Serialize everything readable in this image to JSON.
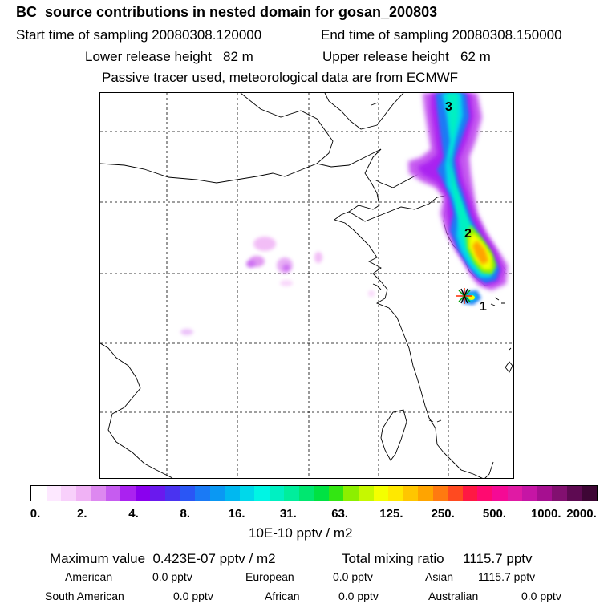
{
  "header": {
    "title": "BC  source contributions in nested domain for gosan_200803",
    "start_label": "Start time of sampling 20080308.120000",
    "end_label": "End time of sampling 20080308.150000",
    "lower_label": "Lower release height   82 m",
    "upper_label": "Upper release height   62 m",
    "tracer_note": "Passive tracer used, meteorological data are from ECMWF"
  },
  "map": {
    "markers": [
      {
        "label": "3"
      },
      {
        "label": "2"
      },
      {
        "label": "1"
      }
    ]
  },
  "colorbar": {
    "colors": [
      "#ffffff",
      "#fde8ff",
      "#f8d0fb",
      "#f0b2f5",
      "#dd88f0",
      "#c65cf0",
      "#aa22f0",
      "#8a00ee",
      "#6a19ee",
      "#4a33f0",
      "#2a56f5",
      "#1a7af5",
      "#0a98f3",
      "#00b8f0",
      "#00d8ea",
      "#00f5e4",
      "#00f0c2",
      "#00ee9c",
      "#00e770",
      "#00e243",
      "#33e612",
      "#8cef00",
      "#c6f800",
      "#f4ff00",
      "#ffe800",
      "#ffc600",
      "#ffa400",
      "#ff7a10",
      "#ff4a20",
      "#ff1843",
      "#ff0a70",
      "#f50a95",
      "#e01aa4",
      "#c615a5",
      "#a60f90",
      "#821070",
      "#5e0a52",
      "#3e0635"
    ],
    "tick_labels": [
      "0.",
      "2.",
      "4.",
      "8.",
      "16.",
      "31.",
      "63.",
      "125.",
      "250.",
      "500.",
      "1000.",
      "2000."
    ],
    "unit": "10E-10 pptv / m2"
  },
  "summary": {
    "max_value": "Maximum value  0.423E-07 pptv / m2",
    "total_mixing": "Total mixing ratio     1115.7 pptv",
    "american_label": "American",
    "american_value": "0.0 pptv",
    "european_label": "European",
    "european_value": "0.0 pptv",
    "asian_label": "Asian",
    "asian_value": "1115.7 pptv",
    "south_american_label": "South American",
    "south_american_value": "0.0 pptv",
    "african_label": "African",
    "african_value": "0.0 pptv",
    "australian_label": "Australian",
    "australian_value": "0.0 pptv"
  }
}
